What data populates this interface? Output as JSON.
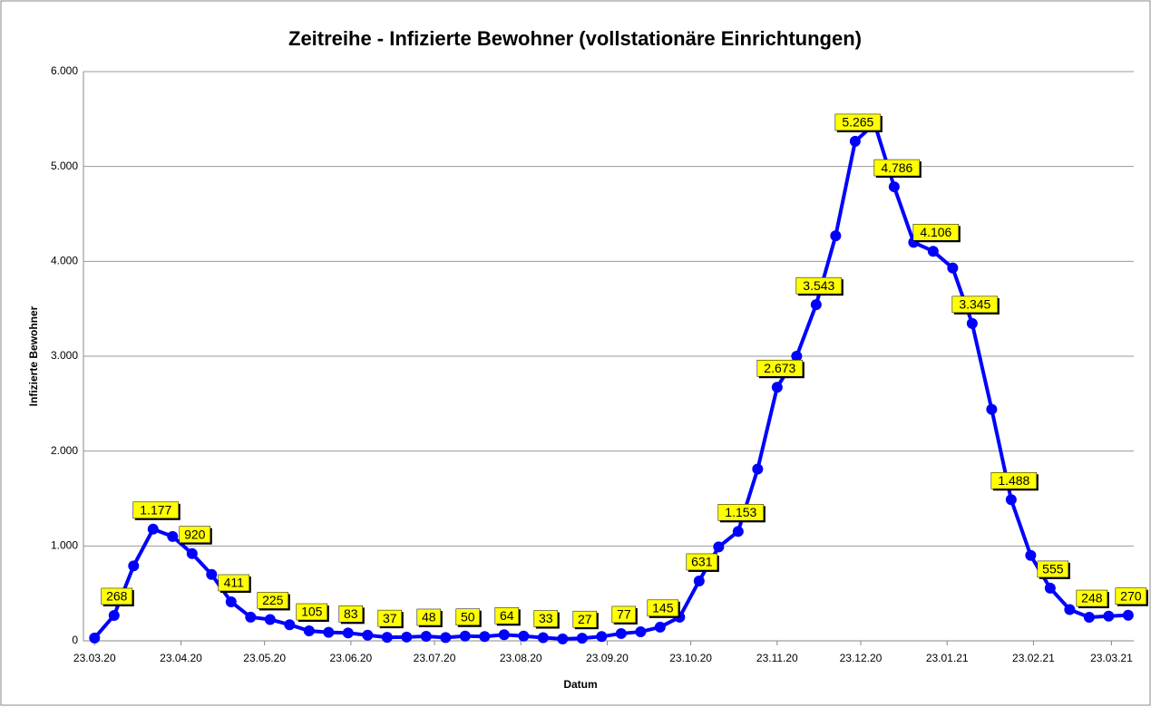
{
  "chart_data": {
    "type": "line",
    "title": "Zeitreihe - Infizierte Bewohner (vollstationäre Einrichtungen)",
    "x_label": "Datum",
    "y_label": "Infizierte Bewohner",
    "x": [
      "2020-03-23",
      "2020-03-30",
      "2020-04-06",
      "2020-04-13",
      "2020-04-20",
      "2020-04-27",
      "2020-05-04",
      "2020-05-11",
      "2020-05-18",
      "2020-05-25",
      "2020-06-01",
      "2020-06-08",
      "2020-06-15",
      "2020-06-22",
      "2020-06-29",
      "2020-07-06",
      "2020-07-13",
      "2020-07-20",
      "2020-07-27",
      "2020-08-03",
      "2020-08-10",
      "2020-08-17",
      "2020-08-24",
      "2020-08-31",
      "2020-09-07",
      "2020-09-14",
      "2020-09-21",
      "2020-09-28",
      "2020-10-05",
      "2020-10-12",
      "2020-10-19",
      "2020-10-26",
      "2020-11-02",
      "2020-11-09",
      "2020-11-16",
      "2020-11-23",
      "2020-11-30",
      "2020-12-07",
      "2020-12-14",
      "2020-12-21",
      "2020-12-28",
      "2021-01-04",
      "2021-01-11",
      "2021-01-18",
      "2021-01-25",
      "2021-02-01",
      "2021-02-08",
      "2021-02-15",
      "2021-02-22",
      "2021-03-01",
      "2021-03-08",
      "2021-03-15",
      "2021-03-22",
      "2021-03-29"
    ],
    "series": [
      {
        "name": "Infizierte Bewohner",
        "color": "#0000ff",
        "values": [
          30,
          268,
          790,
          1177,
          1100,
          920,
          700,
          411,
          250,
          225,
          170,
          105,
          90,
          83,
          60,
          37,
          40,
          48,
          35,
          50,
          45,
          64,
          50,
          33,
          20,
          27,
          45,
          77,
          95,
          145,
          250,
          631,
          990,
          1153,
          1810,
          2673,
          3000,
          3543,
          4270,
          5265,
          5450,
          4786,
          4200,
          4106,
          3930,
          3345,
          2440,
          1488,
          900,
          555,
          330,
          248,
          260,
          270
        ],
        "value_labels": [
          null,
          "268",
          null,
          "1.177",
          null,
          "920",
          null,
          "411",
          null,
          "225",
          null,
          "105",
          null,
          "83",
          null,
          "37",
          null,
          "48",
          null,
          "50",
          null,
          "64",
          null,
          "33",
          null,
          "27",
          null,
          "77",
          null,
          "145",
          null,
          "631",
          null,
          "1.153",
          null,
          "2.673",
          null,
          "3.543",
          null,
          "5.265",
          null,
          "4.786",
          null,
          "4.106",
          null,
          "3.345",
          null,
          "1.488",
          null,
          "555",
          null,
          "248",
          null,
          "270"
        ]
      }
    ],
    "label_color": "#ffff00",
    "xlim": [
      "2020-03-19",
      "2021-03-31"
    ],
    "xticks": [
      {
        "value": "2020-03-23",
        "label": "23.03.20"
      },
      {
        "value": "2020-04-23",
        "label": "23.04.20"
      },
      {
        "value": "2020-05-23",
        "label": "23.05.20"
      },
      {
        "value": "2020-06-23",
        "label": "23.06.20"
      },
      {
        "value": "2020-07-23",
        "label": "23.07.20"
      },
      {
        "value": "2020-08-23",
        "label": "23.08.20"
      },
      {
        "value": "2020-09-23",
        "label": "23.09.20"
      },
      {
        "value": "2020-10-23",
        "label": "23.10.20"
      },
      {
        "value": "2020-11-23",
        "label": "23.11.20"
      },
      {
        "value": "2020-12-23",
        "label": "23.12.20"
      },
      {
        "value": "2021-01-23",
        "label": "23.01.21"
      },
      {
        "value": "2021-02-23",
        "label": "23.02.21"
      },
      {
        "value": "2021-03-23",
        "label": "23.03.21"
      }
    ],
    "ylim": [
      0,
      6000
    ],
    "yticks": [
      0,
      {
        "value": 1000,
        "label": "1.000"
      },
      {
        "value": 2000,
        "label": "2.000"
      },
      {
        "value": 3000,
        "label": "3.000"
      },
      {
        "value": 4000,
        "label": "4.000"
      },
      {
        "value": 5000,
        "label": "5.000"
      },
      {
        "value": 6000,
        "label": "6.000"
      }
    ],
    "grid": true
  }
}
